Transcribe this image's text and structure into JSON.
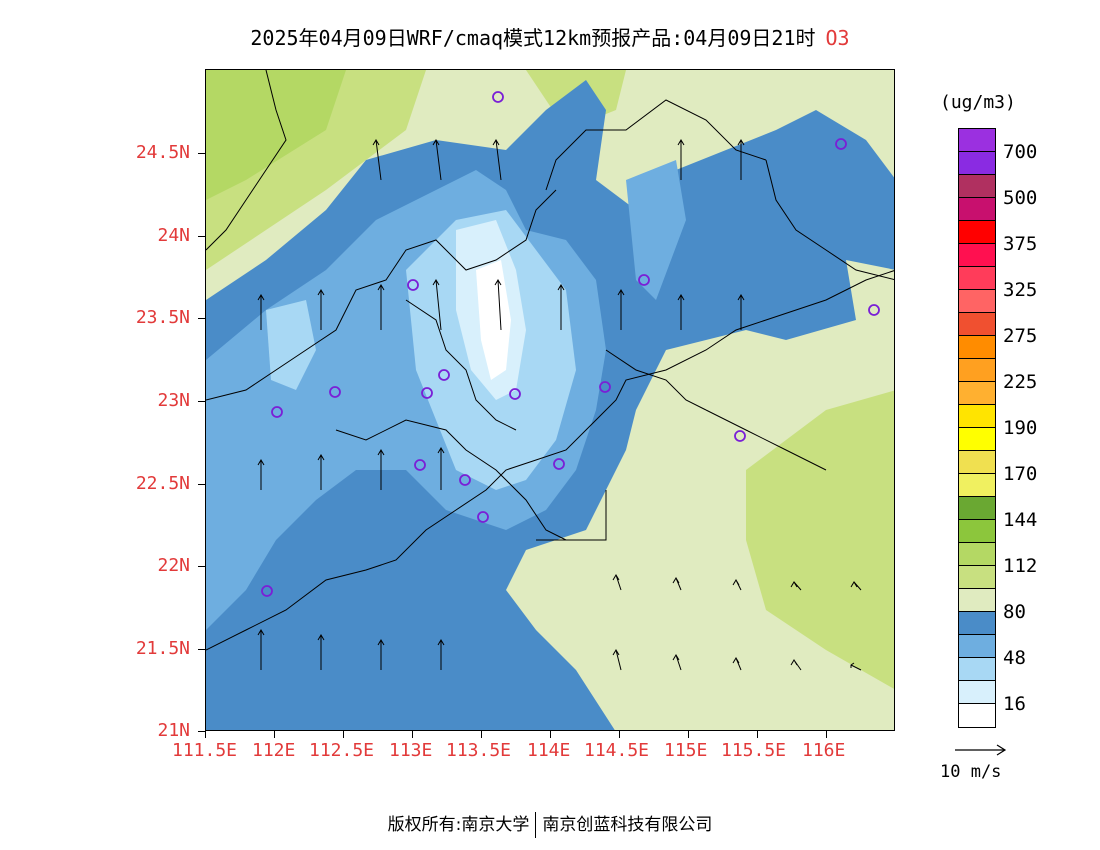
{
  "title": {
    "main": "2025年04月09日WRF/cmaq模式12km预报产品:04月09日21时",
    "species": "O3"
  },
  "axes": {
    "lat_labels": [
      "24.5N",
      "24N",
      "23.5N",
      "23N",
      "22.5N",
      "22N",
      "21.5N",
      "21N"
    ],
    "lon_labels": [
      "111.5E",
      "112E",
      "112.5E",
      "113E",
      "113.5E",
      "114E",
      "114.5E",
      "115E",
      "115.5E",
      "116E"
    ]
  },
  "colorbar": {
    "unit": "(ug/m3)",
    "labels": [
      "700",
      "500",
      "375",
      "325",
      "275",
      "225",
      "190",
      "170",
      "144",
      "112",
      "80",
      "48",
      "16"
    ],
    "colors": [
      "#9b30e0",
      "#8a2be2",
      "#b03060",
      "#c8106e",
      "#ff0000",
      "#ff1050",
      "#ff3c5a",
      "#ff6464",
      "#f05030",
      "#ff8c00",
      "#ffa020",
      "#ffb030",
      "#ffe400",
      "#ffff00",
      "#f0e050",
      "#f0f060",
      "#6aa832",
      "#8cc63c",
      "#b4d864",
      "#c8e080",
      "#e0ebc0",
      "#4a8cc8",
      "#6eaee0",
      "#a8d8f4",
      "#d8f0fc",
      "#ffffff"
    ]
  },
  "wind_reference": {
    "label": "10 m/s"
  },
  "footer": {
    "left": "版权所有:南京大学",
    "right": "南京创蓝科技有限公司"
  }
}
